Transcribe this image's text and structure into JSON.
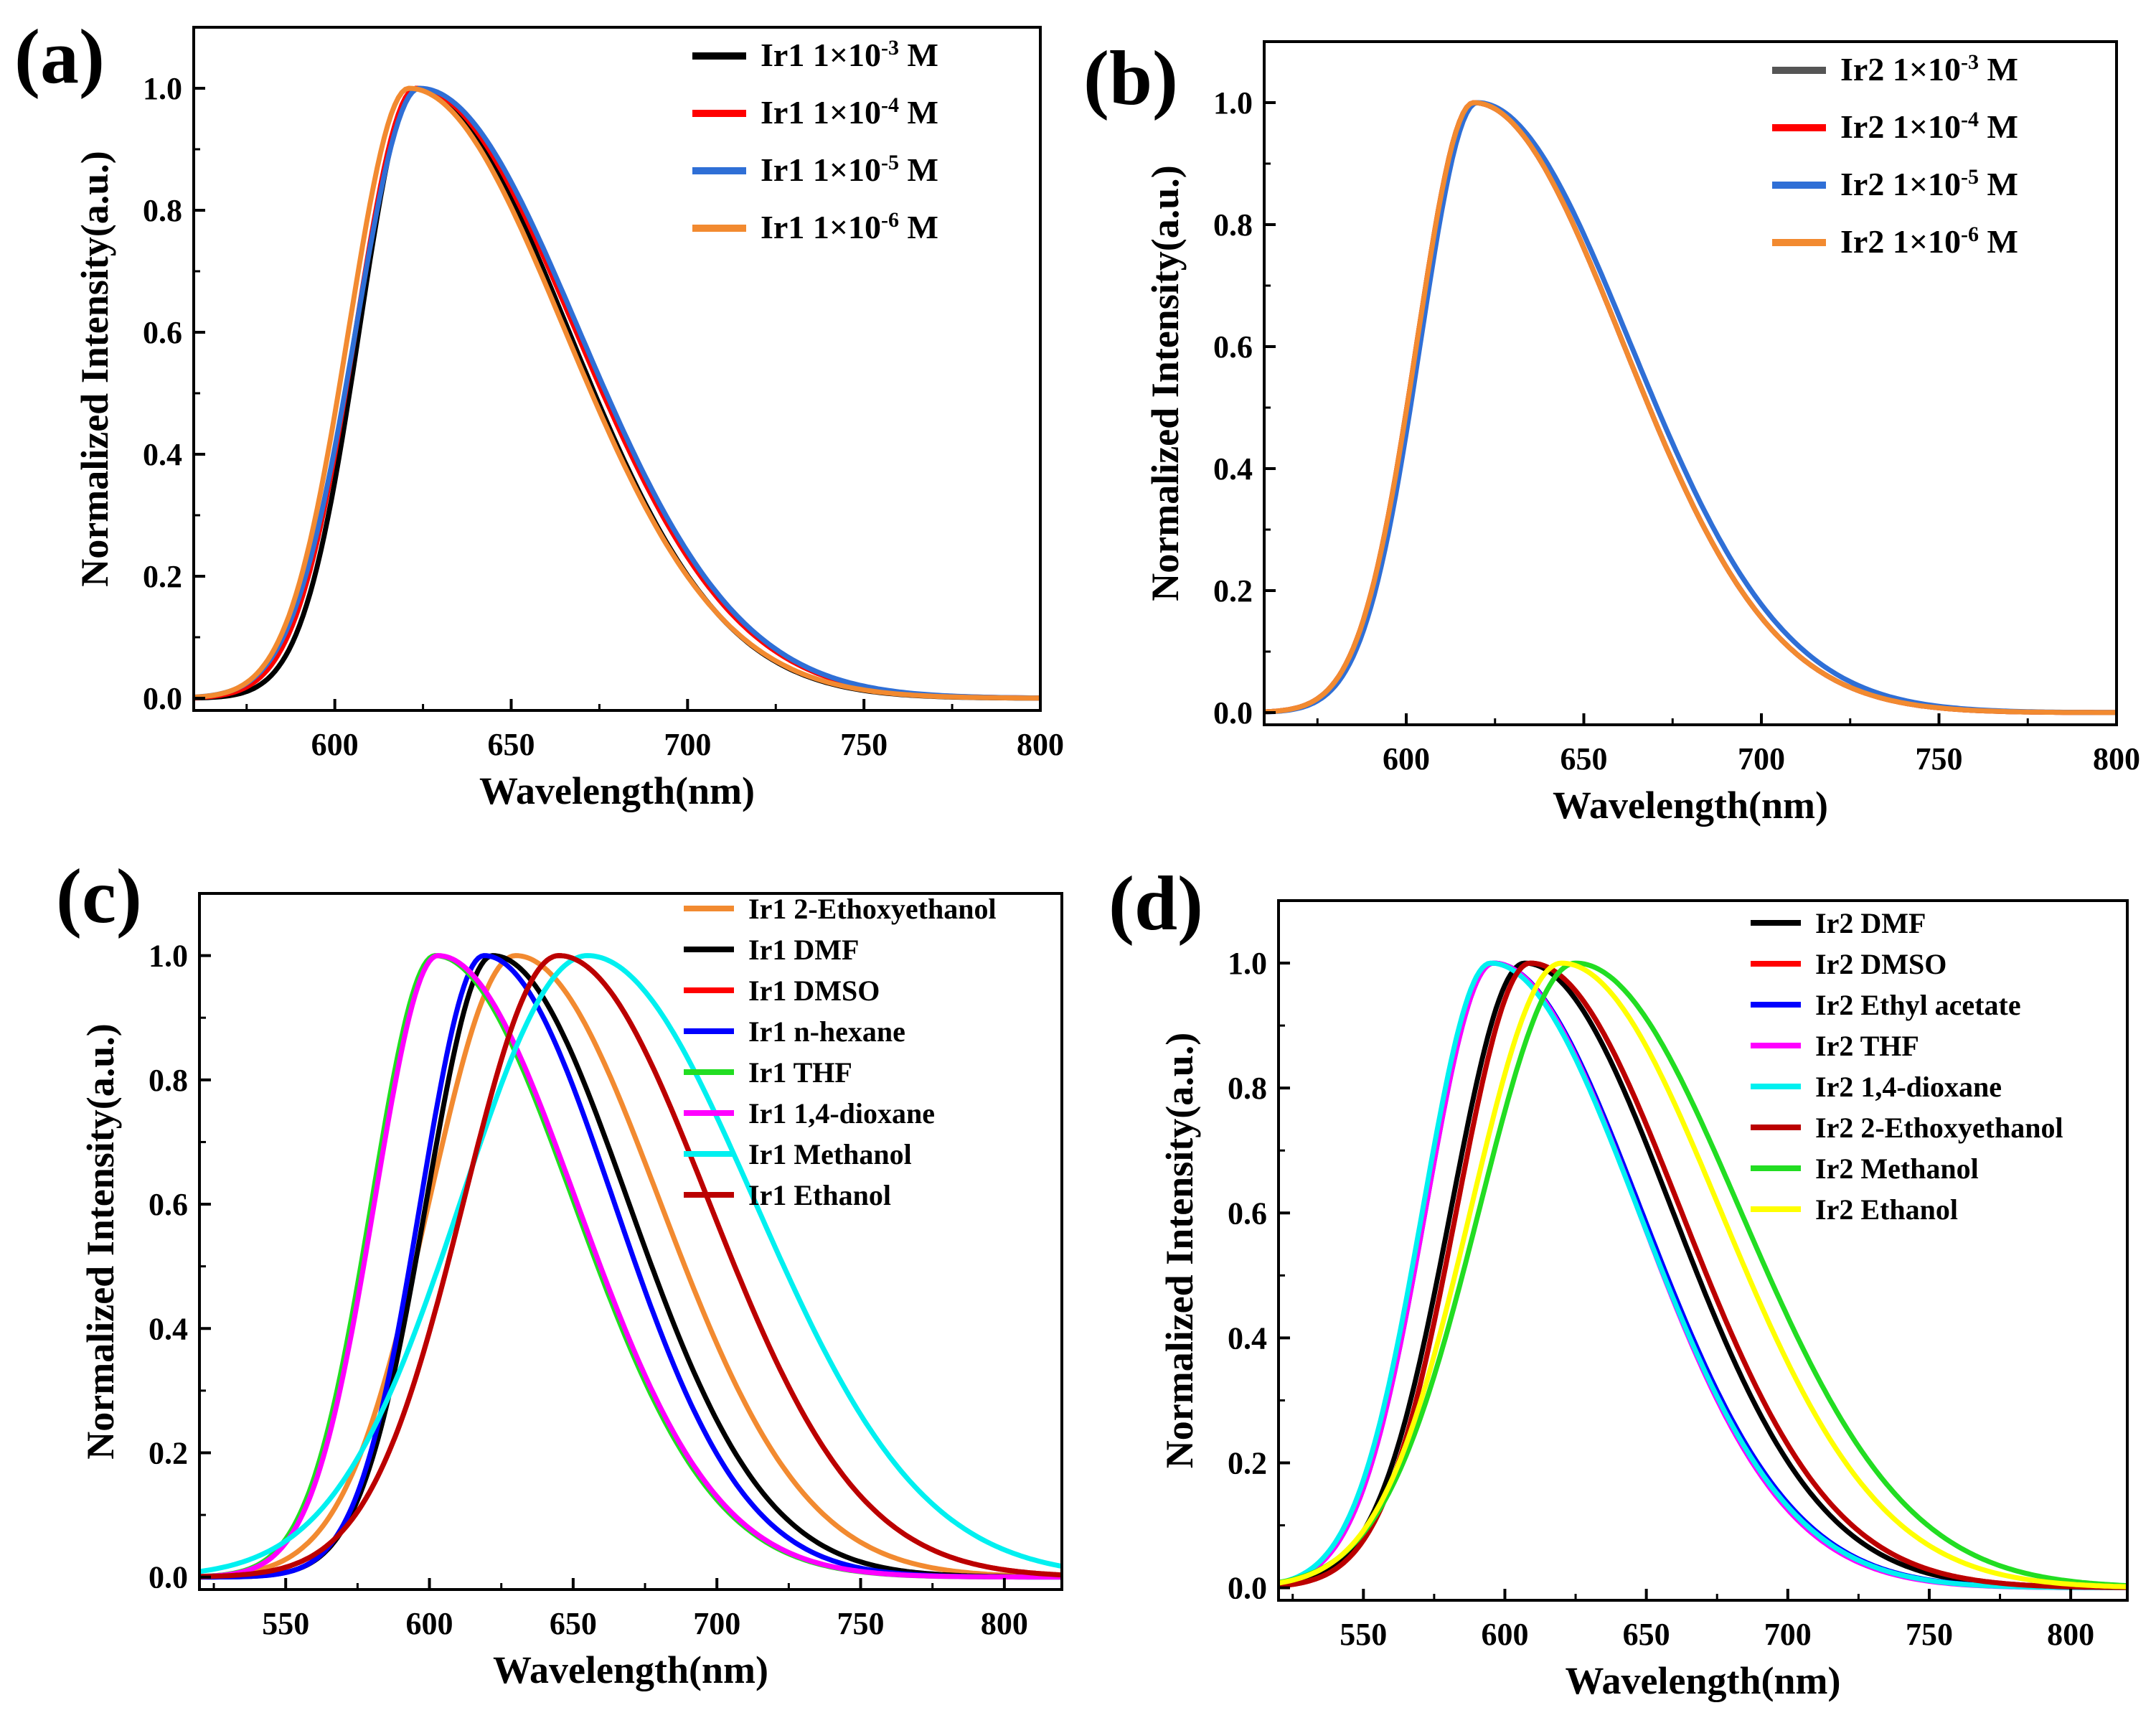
{
  "figure": {
    "panels": [
      {
        "label": "(a)"
      },
      {
        "label": "(b)"
      },
      {
        "label": "(c)"
      },
      {
        "label": "(d)"
      }
    ]
  },
  "chart_data": [
    {
      "panel": "(a)",
      "type": "line",
      "xlabel": "Wavelength(nm)",
      "ylabel": "Normalized Intensity(a.u.)",
      "xlim": [
        560,
        800
      ],
      "ylim": [
        -0.02,
        1.1
      ],
      "xticks": [
        600,
        650,
        700,
        750,
        800
      ],
      "yticks": [
        0.0,
        0.2,
        0.4,
        0.6,
        0.8,
        1.0
      ],
      "legend_position": "top-right",
      "series": [
        {
          "name": "Ir1 1×10",
          "exp": "-3",
          "unit": " M",
          "color": "#000000",
          "peak": 623,
          "sl": 16,
          "sr": 43,
          "base": 0.0
        },
        {
          "name": "Ir1 1×10",
          "exp": "-4",
          "unit": " M",
          "color": "#ff0000",
          "peak": 623,
          "sl": 17,
          "sr": 45,
          "base": 0.0
        },
        {
          "name": "Ir1 1×10",
          "exp": "-5",
          "unit": " M",
          "color": "#2f6fd6",
          "peak": 624,
          "sl": 18,
          "sr": 45,
          "base": 0.0
        },
        {
          "name": "Ir1 1×10",
          "exp": "-6",
          "unit": " M",
          "color": "#f28a30",
          "peak": 621,
          "sl": 17,
          "sr": 44,
          "base": 0.0
        }
      ]
    },
    {
      "panel": "(b)",
      "type": "line",
      "xlabel": "Wavelength(nm)",
      "ylabel": "Normalized Intensity(a.u.)",
      "xlim": [
        560,
        800
      ],
      "ylim": [
        -0.02,
        1.1
      ],
      "xticks": [
        600,
        650,
        700,
        750,
        800
      ],
      "yticks": [
        0.0,
        0.2,
        0.4,
        0.6,
        0.8,
        1.0
      ],
      "legend_position": "top-right",
      "series": [
        {
          "name": "Ir2 1×10",
          "exp": "-3",
          "unit": " M",
          "color": "#555555",
          "peak": 619,
          "sl": 16,
          "sr": 42,
          "base": 0.0
        },
        {
          "name": "Ir2 1×10",
          "exp": "-4",
          "unit": " M",
          "color": "#ff0000",
          "peak": 619,
          "sl": 16,
          "sr": 42,
          "base": 0.0
        },
        {
          "name": "Ir2 1×10",
          "exp": "-5",
          "unit": " M",
          "color": "#2f6fd6",
          "peak": 620,
          "sl": 16,
          "sr": 43,
          "base": 0.0
        },
        {
          "name": "Ir2 1×10",
          "exp": "-6",
          "unit": " M",
          "color": "#f28a30",
          "peak": 619,
          "sl": 16,
          "sr": 42,
          "base": 0.0
        }
      ]
    },
    {
      "panel": "(c)",
      "type": "line",
      "xlabel": "Wavelength(nm)",
      "ylabel": "Normalized Intensity(a.u.)",
      "xlim": [
        520,
        820
      ],
      "ylim": [
        -0.02,
        1.1
      ],
      "xticks": [
        550,
        600,
        650,
        700,
        750,
        800
      ],
      "yticks": [
        0.0,
        0.2,
        0.4,
        0.6,
        0.8,
        1.0
      ],
      "legend_position": "top-right",
      "series": [
        {
          "name": "Ir1 2-Ethoxyethanol",
          "color": "#f28a30",
          "peak": 630,
          "sl": 30,
          "sr": 50,
          "base": 0.0
        },
        {
          "name": "Ir1 DMF",
          "color": "#000000",
          "peak": 622,
          "sl": 23,
          "sr": 47,
          "base": 0.0
        },
        {
          "name": "Ir1 DMSO",
          "color": "#ff0000",
          "peak": 645,
          "sl": 33,
          "sr": 52,
          "base": 0.0
        },
        {
          "name": "Ir1 n-hexane",
          "color": "#0000ff",
          "peak": 619,
          "sl": 22,
          "sr": 45,
          "base": 0.0
        },
        {
          "name": "Ir1 THF",
          "color": "#22dd22",
          "peak": 602,
          "sl": 22,
          "sr": 48,
          "base": 0.0
        },
        {
          "name": "Ir1 1,4-dioxane",
          "color": "#ff00ff",
          "peak": 603,
          "sl": 22,
          "sr": 48,
          "base": 0.0
        },
        {
          "name": "Ir1 Methanol",
          "color": "#00f0f0",
          "peak": 655,
          "sl": 44,
          "sr": 58,
          "base": 0.0
        },
        {
          "name": "Ir1 Ethanol",
          "color": "#bb0000",
          "peak": 645,
          "sl": 33,
          "sr": 52,
          "base": 0.0
        }
      ]
    },
    {
      "panel": "(d)",
      "type": "line",
      "xlabel": "Wavelength(nm)",
      "ylabel": "Normalized Intensity(a.u.)",
      "xlim": [
        520,
        820
      ],
      "ylim": [
        -0.02,
        1.1
      ],
      "xticks": [
        550,
        600,
        650,
        700,
        750,
        800
      ],
      "yticks": [
        0.0,
        0.2,
        0.4,
        0.6,
        0.8,
        1.0
      ],
      "legend_position": "top-right",
      "series": [
        {
          "name": "Ir2 DMF",
          "color": "#000000",
          "peak": 607,
          "sl": 26,
          "sr": 52,
          "base": 0.0
        },
        {
          "name": "Ir2 DMSO",
          "color": "#ff0000",
          "peak": 609,
          "sl": 26,
          "sr": 53,
          "base": 0.0
        },
        {
          "name": "Ir2 Ethyl acetate",
          "color": "#0000ff",
          "peak": 596,
          "sl": 24,
          "sr": 52,
          "base": 0.0
        },
        {
          "name": "Ir2 THF",
          "color": "#ff00ff",
          "peak": 596,
          "sl": 24,
          "sr": 51,
          "base": 0.0
        },
        {
          "name": "Ir2 1,4-dioxane",
          "color": "#00f0f0",
          "peak": 595,
          "sl": 24,
          "sr": 52,
          "base": 0.0
        },
        {
          "name": "Ir2 2-Ethoxyethanol",
          "color": "#bb0000",
          "peak": 609,
          "sl": 26,
          "sr": 53,
          "base": 0.0
        },
        {
          "name": "Ir2 Methanol",
          "color": "#22dd22",
          "peak": 625,
          "sl": 34,
          "sr": 58,
          "base": 0.0
        },
        {
          "name": "Ir2 Ethanol",
          "color": "#ffff00",
          "peak": 620,
          "sl": 32,
          "sr": 56,
          "base": 0.0
        }
      ]
    }
  ]
}
